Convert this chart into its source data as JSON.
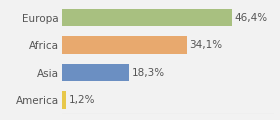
{
  "categories": [
    "America",
    "Asia",
    "Africa",
    "Europa"
  ],
  "values": [
    1.2,
    18.3,
    34.1,
    46.4
  ],
  "labels": [
    "1,2%",
    "18,3%",
    "34,1%",
    "46,4%"
  ],
  "bar_colors": [
    "#e8c84a",
    "#6b8fc2",
    "#e8a96e",
    "#a8c080"
  ],
  "xlim": [
    0,
    58
  ],
  "background_color": "#f2f2f2",
  "bar_height": 0.65,
  "label_fontsize": 7.5,
  "tick_fontsize": 7.5
}
